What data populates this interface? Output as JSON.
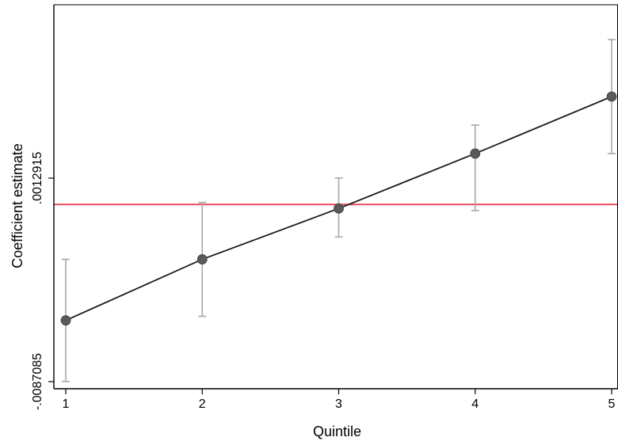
{
  "chart_data": {
    "type": "line",
    "title": "",
    "xlabel": "Quintile",
    "ylabel": "Coefficient estimate",
    "x_ticks": [
      "1",
      "2",
      "3",
      "4",
      "5"
    ],
    "y_ticks": [
      {
        "value": -0.0087085,
        "label": "-.0087085"
      },
      {
        "value": 0.0012915,
        "label": ".0012915"
      }
    ],
    "xlim": [
      1,
      5
    ],
    "ylim": [
      -0.0087085,
      0.0087085
    ],
    "grid": false,
    "series": [
      {
        "x": [
          1,
          2,
          3,
          4,
          5
        ],
        "values": [
          -0.0057,
          -0.0027,
          -0.0002,
          0.0025,
          0.0053
        ],
        "ci_low": [
          -0.0087,
          -0.0055,
          -0.0016,
          -0.0003,
          0.0025
        ],
        "ci_high": [
          -0.0027,
          0.0001,
          0.0013,
          0.0039,
          0.0081
        ]
      }
    ],
    "reference_line": {
      "y": 0.0,
      "color": "#e8485c"
    },
    "colors": {
      "line": "#1a1a1a",
      "marker": "#5a5a5a",
      "ci": "#a8a8a8",
      "axis": "#000000"
    }
  }
}
